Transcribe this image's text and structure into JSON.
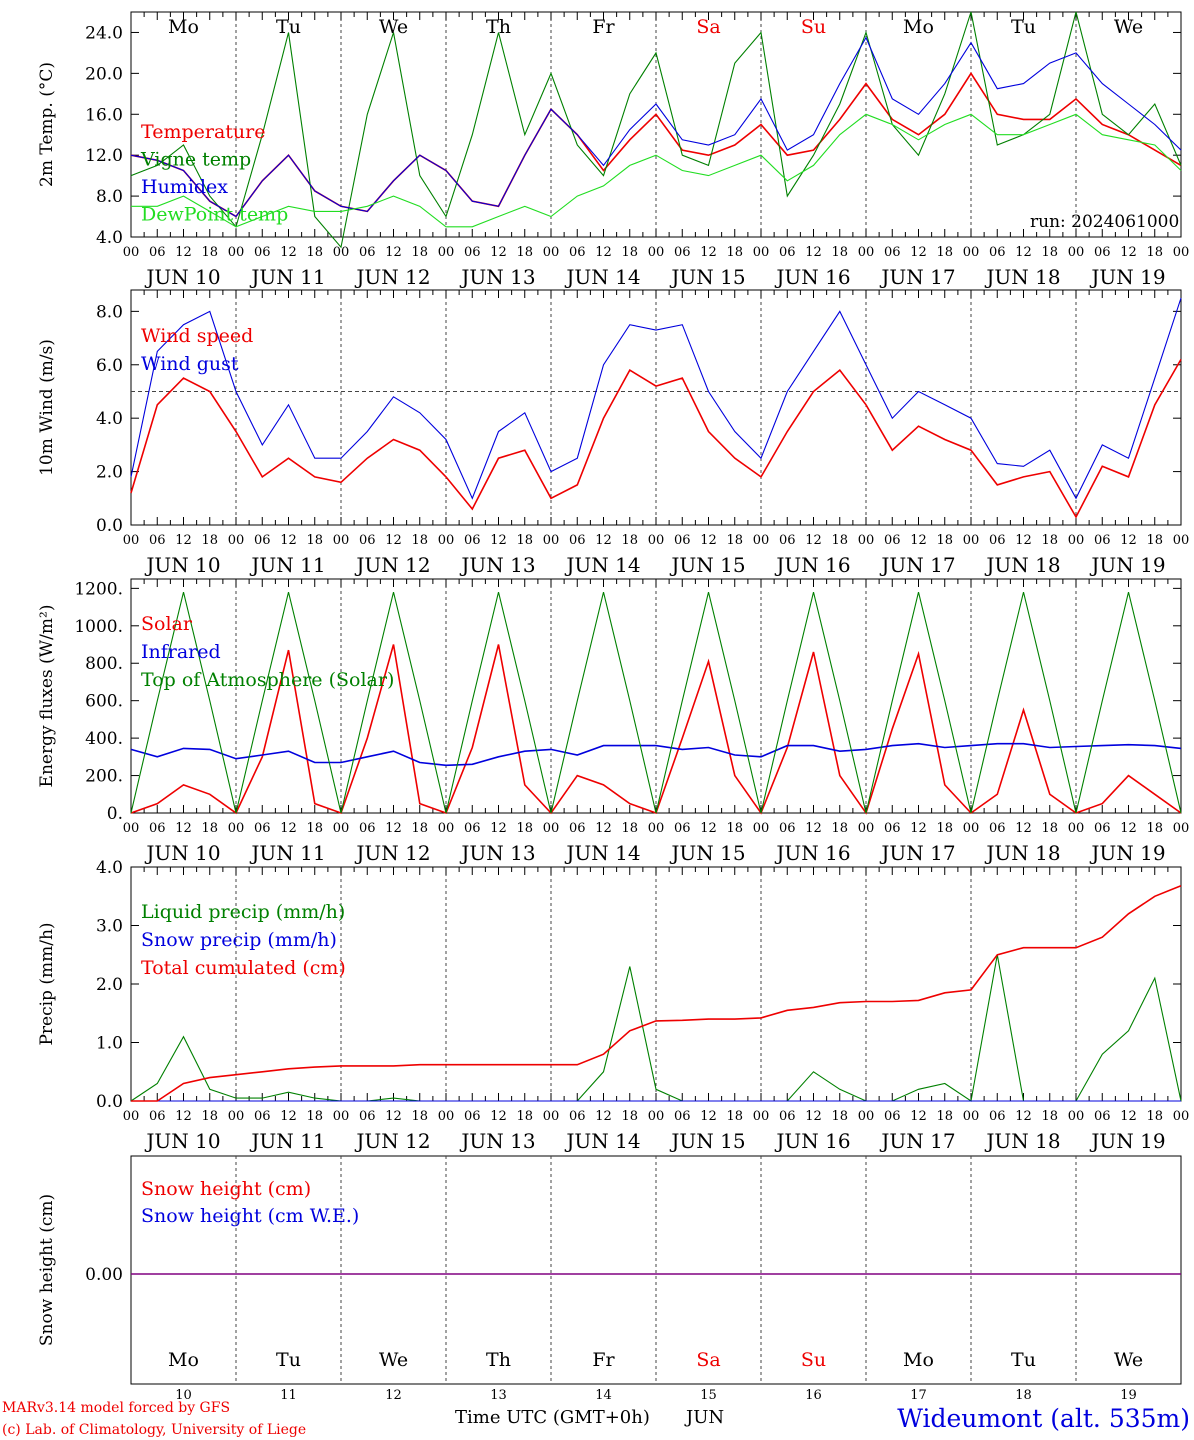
{
  "run_label": "run: 2024061000",
  "footer": {
    "credit1": "MARv3.14 model forced by GFS",
    "credit2": "(c) Lab. of Climatology, University of Liege",
    "xlabel": "Time UTC (GMT+0h)",
    "month": "JUN",
    "station": "Wideumont (alt. 535m)"
  },
  "days": [
    "JUN 10",
    "JUN 11",
    "JUN 12",
    "JUN 13",
    "JUN 14",
    "JUN 15",
    "JUN 16",
    "JUN 17",
    "JUN 18",
    "JUN 19"
  ],
  "day_numbers": [
    "10",
    "11",
    "12",
    "13",
    "14",
    "15",
    "16",
    "17",
    "18",
    "19"
  ],
  "weekdays": [
    {
      "label": "Mo",
      "weekend": false
    },
    {
      "label": "Tu",
      "weekend": false
    },
    {
      "label": "We",
      "weekend": false
    },
    {
      "label": "Th",
      "weekend": false
    },
    {
      "label": "Fr",
      "weekend": false
    },
    {
      "label": "Sa",
      "weekend": true
    },
    {
      "label": "Su",
      "weekend": true
    },
    {
      "label": "Mo",
      "weekend": false
    },
    {
      "label": "Tu",
      "weekend": false
    },
    {
      "label": "We",
      "weekend": false
    }
  ],
  "hour_ticks": [
    "00",
    "06",
    "12",
    "18"
  ],
  "colors": {
    "red": "#ee0000",
    "green": "#008000",
    "blue": "#0000dd",
    "lightgreen": "#22dd22",
    "purple": "#800080",
    "grid": "#444444"
  },
  "chart_data": [
    {
      "type": "line",
      "ylabel": "2m Temp. (°C)",
      "ylim": [
        4,
        26
      ],
      "yticks": [
        "4.0",
        "8.0",
        "12.0",
        "16.0",
        "20.0",
        "24.0"
      ],
      "x_hours": [
        0,
        6,
        12,
        18,
        24,
        30,
        36,
        42,
        48,
        54,
        60,
        66,
        72,
        78,
        84,
        90,
        96,
        102,
        108,
        114,
        120,
        126,
        132,
        138,
        144,
        150,
        156,
        162,
        168,
        174,
        180,
        186,
        192,
        198,
        204,
        210,
        216,
        222,
        228,
        234,
        240
      ],
      "series": [
        {
          "name": "Temperature",
          "color": "red",
          "values": [
            12,
            11.5,
            10.5,
            7.5,
            6,
            9.5,
            12,
            8.5,
            7,
            6.5,
            9.5,
            12,
            10.5,
            7.5,
            7,
            12,
            16.5,
            14,
            10.5,
            13.5,
            16,
            12.5,
            12,
            13,
            15,
            12,
            12.5,
            15.5,
            19,
            15.5,
            14,
            16,
            20,
            16,
            15.5,
            15.5,
            17.5,
            15,
            14,
            12.5,
            11
          ]
        },
        {
          "name": "Vigne temp",
          "color": "green",
          "values": [
            10,
            11,
            13,
            8,
            5,
            14,
            24,
            6,
            3,
            16,
            24,
            10,
            6,
            14,
            24,
            14,
            20,
            13,
            10,
            18,
            22,
            12,
            11,
            21,
            24,
            8,
            12,
            17,
            24,
            15,
            12,
            18,
            26,
            13,
            14,
            16,
            26,
            16,
            14,
            17,
            11
          ]
        },
        {
          "name": "Humidex",
          "color": "blue",
          "values": [
            12,
            11.5,
            10.5,
            7.5,
            6,
            9.5,
            12,
            8.5,
            7,
            6.5,
            9.5,
            12,
            10.5,
            7.5,
            7,
            12,
            16.5,
            14,
            11,
            14.5,
            17,
            13.5,
            13,
            14,
            17.5,
            12.5,
            14,
            19,
            23.5,
            17.5,
            16,
            19,
            23,
            18.5,
            19,
            21,
            22,
            19,
            17,
            15,
            12.5
          ]
        },
        {
          "name": "DewPoint temp",
          "color": "lightgreen",
          "values": [
            7,
            7,
            8,
            6.5,
            5,
            6,
            7,
            6.5,
            6.5,
            7,
            8,
            7,
            5,
            5,
            6,
            7,
            6,
            8,
            9,
            11,
            12,
            10.5,
            10,
            11,
            12,
            9.5,
            11,
            14,
            16,
            15,
            13.5,
            15,
            16,
            14,
            14,
            15,
            16,
            14,
            13.5,
            13,
            10.5
          ]
        }
      ]
    },
    {
      "type": "line",
      "ylabel": "10m Wind (m/s)",
      "ylim": [
        0,
        8.8
      ],
      "yticks": [
        "0.0",
        "2.0",
        "4.0",
        "6.0",
        "8.0"
      ],
      "reference_line": 5,
      "x_hours": [
        0,
        6,
        12,
        18,
        24,
        30,
        36,
        42,
        48,
        54,
        60,
        66,
        72,
        78,
        84,
        90,
        96,
        102,
        108,
        114,
        120,
        126,
        132,
        138,
        144,
        150,
        156,
        162,
        168,
        174,
        180,
        186,
        192,
        198,
        204,
        210,
        216,
        222,
        228,
        234,
        240
      ],
      "series": [
        {
          "name": "Wind speed",
          "color": "red",
          "values": [
            1.2,
            4.5,
            5.5,
            5,
            3.5,
            1.8,
            2.5,
            1.8,
            1.6,
            2.5,
            3.2,
            2.8,
            1.8,
            0.6,
            2.5,
            2.8,
            1,
            1.5,
            4,
            5.8,
            5.2,
            5.5,
            3.5,
            2.5,
            1.8,
            3.5,
            5,
            5.8,
            4.5,
            2.8,
            3.7,
            3.2,
            2.8,
            1.5,
            1.8,
            2,
            0.3,
            2.2,
            1.8,
            4.5,
            6.2
          ]
        },
        {
          "name": "Wind gust",
          "color": "blue",
          "values": [
            1.8,
            6.5,
            7.5,
            8,
            5,
            3,
            4.5,
            2.5,
            2.5,
            3.5,
            4.8,
            4.2,
            3.2,
            1,
            3.5,
            4.2,
            2,
            2.5,
            6,
            7.5,
            7.3,
            7.5,
            5,
            3.5,
            2.5,
            5,
            6.5,
            8,
            6,
            4,
            5,
            4.5,
            4,
            2.3,
            2.2,
            2.8,
            1,
            3,
            2.5,
            5.5,
            8.5
          ]
        }
      ]
    },
    {
      "type": "line",
      "ylabel": "Energy fluxes (W/m²)",
      "ylim": [
        0,
        1250
      ],
      "yticks": [
        "0.",
        "200.",
        "400.",
        "600.",
        "800.",
        "1000.",
        "1200."
      ],
      "x_hours": [
        0,
        6,
        12,
        18,
        24,
        30,
        36,
        42,
        48,
        54,
        60,
        66,
        72,
        78,
        84,
        90,
        96,
        102,
        108,
        114,
        120,
        126,
        132,
        138,
        144,
        150,
        156,
        162,
        168,
        174,
        180,
        186,
        192,
        198,
        204,
        210,
        216,
        222,
        228,
        234,
        240
      ],
      "series": [
        {
          "name": "Solar",
          "color": "red",
          "values": [
            0,
            50,
            150,
            100,
            0,
            300,
            870,
            50,
            0,
            400,
            900,
            50,
            0,
            350,
            900,
            150,
            0,
            200,
            150,
            50,
            0,
            400,
            810,
            200,
            0,
            350,
            860,
            200,
            0,
            450,
            850,
            150,
            0,
            100,
            550,
            100,
            0,
            50,
            200,
            100,
            0
          ]
        },
        {
          "name": "Infrared",
          "color": "blue",
          "values": [
            340,
            300,
            345,
            340,
            290,
            310,
            330,
            270,
            270,
            300,
            330,
            270,
            255,
            260,
            300,
            330,
            340,
            310,
            360,
            360,
            360,
            340,
            350,
            310,
            300,
            360,
            360,
            330,
            340,
            360,
            370,
            350,
            360,
            370,
            370,
            350,
            355,
            360,
            365,
            360,
            345
          ]
        },
        {
          "name": "Top of Atmosphere (Solar)",
          "color": "green",
          "values": [
            0,
            600,
            1180,
            600,
            0,
            600,
            1180,
            600,
            0,
            600,
            1180,
            600,
            0,
            600,
            1180,
            600,
            0,
            600,
            1180,
            600,
            0,
            600,
            1180,
            600,
            0,
            600,
            1180,
            600,
            0,
            600,
            1180,
            600,
            0,
            600,
            1180,
            600,
            0,
            600,
            1180,
            600,
            0
          ]
        }
      ]
    },
    {
      "type": "line",
      "ylabel": "Precip (mm/h)",
      "ylim": [
        0,
        4
      ],
      "yticks": [
        "0.0",
        "1.0",
        "2.0",
        "3.0",
        "4.0"
      ],
      "x_hours": [
        0,
        6,
        12,
        18,
        24,
        30,
        36,
        42,
        48,
        54,
        60,
        66,
        72,
        78,
        84,
        90,
        96,
        102,
        108,
        114,
        120,
        126,
        132,
        138,
        144,
        150,
        156,
        162,
        168,
        174,
        180,
        186,
        192,
        198,
        204,
        210,
        216,
        222,
        228,
        234,
        240
      ],
      "series": [
        {
          "name": "Liquid precip (mm/h)",
          "color": "green",
          "values": [
            0,
            0.3,
            1.1,
            0.2,
            0.05,
            0.05,
            0.15,
            0.05,
            0,
            0,
            0.05,
            0,
            0,
            0,
            0,
            0,
            0,
            0,
            0.5,
            2.3,
            0.2,
            0,
            0,
            0,
            0,
            0,
            0.5,
            0.2,
            0,
            0,
            0.2,
            0.3,
            0,
            2.5,
            0,
            0,
            0,
            0.8,
            1.2,
            2.1,
            0
          ]
        },
        {
          "name": "Snow precip (mm/h)",
          "color": "blue",
          "values": [
            0,
            0,
            0,
            0,
            0,
            0,
            0,
            0,
            0,
            0,
            0,
            0,
            0,
            0,
            0,
            0,
            0,
            0,
            0,
            0,
            0,
            0,
            0,
            0,
            0,
            0,
            0,
            0,
            0,
            0,
            0,
            0,
            0,
            0,
            0,
            0,
            0,
            0,
            0,
            0,
            0
          ]
        },
        {
          "name": "Total cumulated (cm)",
          "color": "red",
          "values": [
            0,
            0,
            0.3,
            0.4,
            0.45,
            0.5,
            0.55,
            0.58,
            0.6,
            0.6,
            0.6,
            0.62,
            0.62,
            0.62,
            0.62,
            0.62,
            0.62,
            0.62,
            0.8,
            1.2,
            1.37,
            1.38,
            1.4,
            1.4,
            1.42,
            1.55,
            1.6,
            1.68,
            1.7,
            1.7,
            1.72,
            1.85,
            1.9,
            2.5,
            2.62,
            2.62,
            2.62,
            2.8,
            3.2,
            3.5,
            3.68
          ]
        }
      ]
    },
    {
      "type": "line",
      "ylabel": "Snow height (cm)",
      "yticks": [
        "0.00"
      ],
      "series": [
        {
          "name": "Snow height (cm)",
          "color": "red",
          "values": [
            0,
            0
          ]
        },
        {
          "name": "Snow height (cm W.E.)",
          "color": "blue",
          "values": [
            0,
            0
          ]
        }
      ]
    }
  ]
}
